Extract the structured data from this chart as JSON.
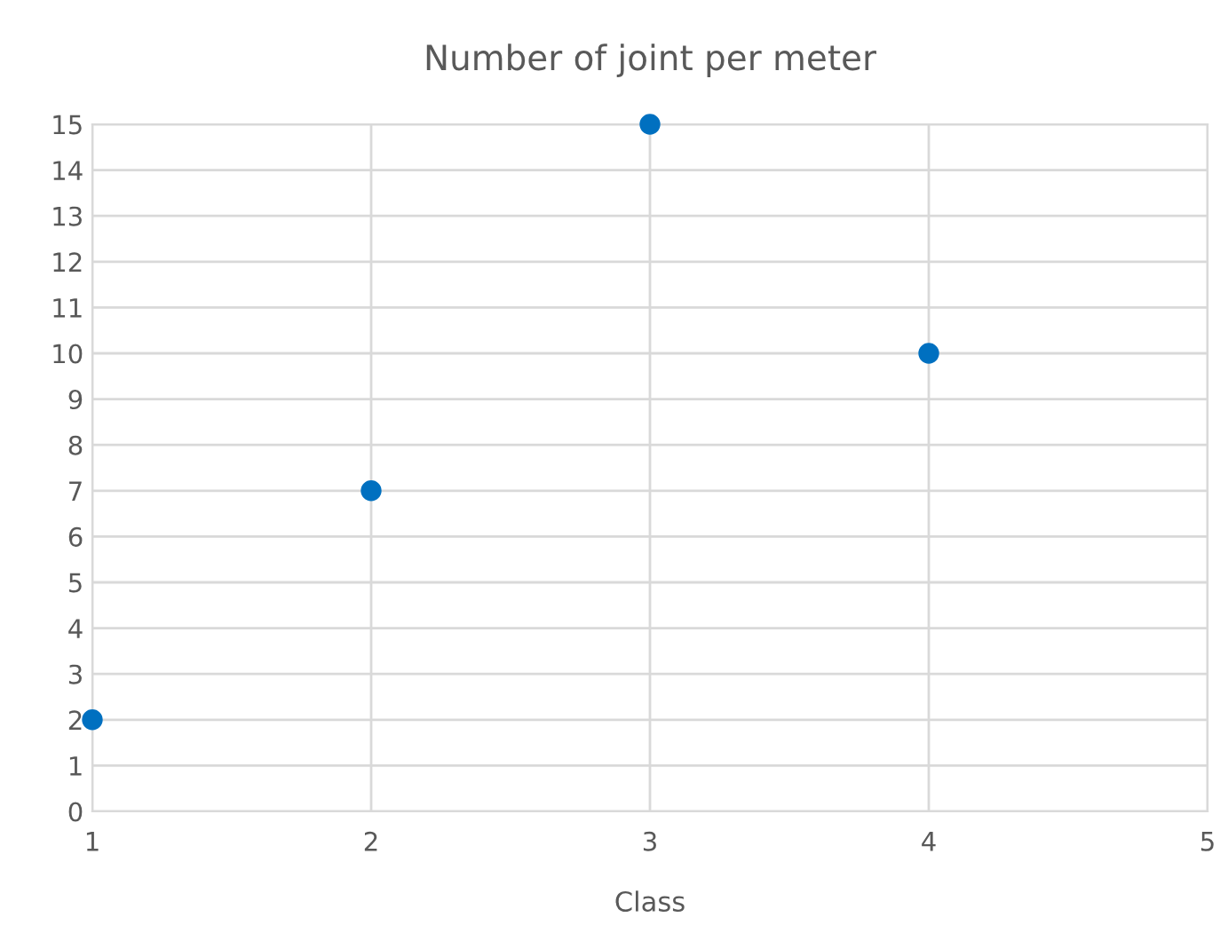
{
  "chart_data": {
    "type": "scatter",
    "title": "Number of joint per meter",
    "xlabel": "Class",
    "x": [
      1,
      2,
      3,
      4
    ],
    "values": [
      2,
      7,
      15,
      10
    ],
    "color": "#0070c0",
    "xlim": [
      1,
      5
    ],
    "xticks": [
      1,
      2,
      3,
      4,
      5
    ],
    "ylim": [
      0,
      15
    ],
    "yticks": [
      0,
      1,
      2,
      3,
      4,
      5,
      6,
      7,
      8,
      9,
      10,
      11,
      12,
      13,
      14,
      15
    ],
    "grid": true,
    "marker": "circle",
    "legend": false
  }
}
